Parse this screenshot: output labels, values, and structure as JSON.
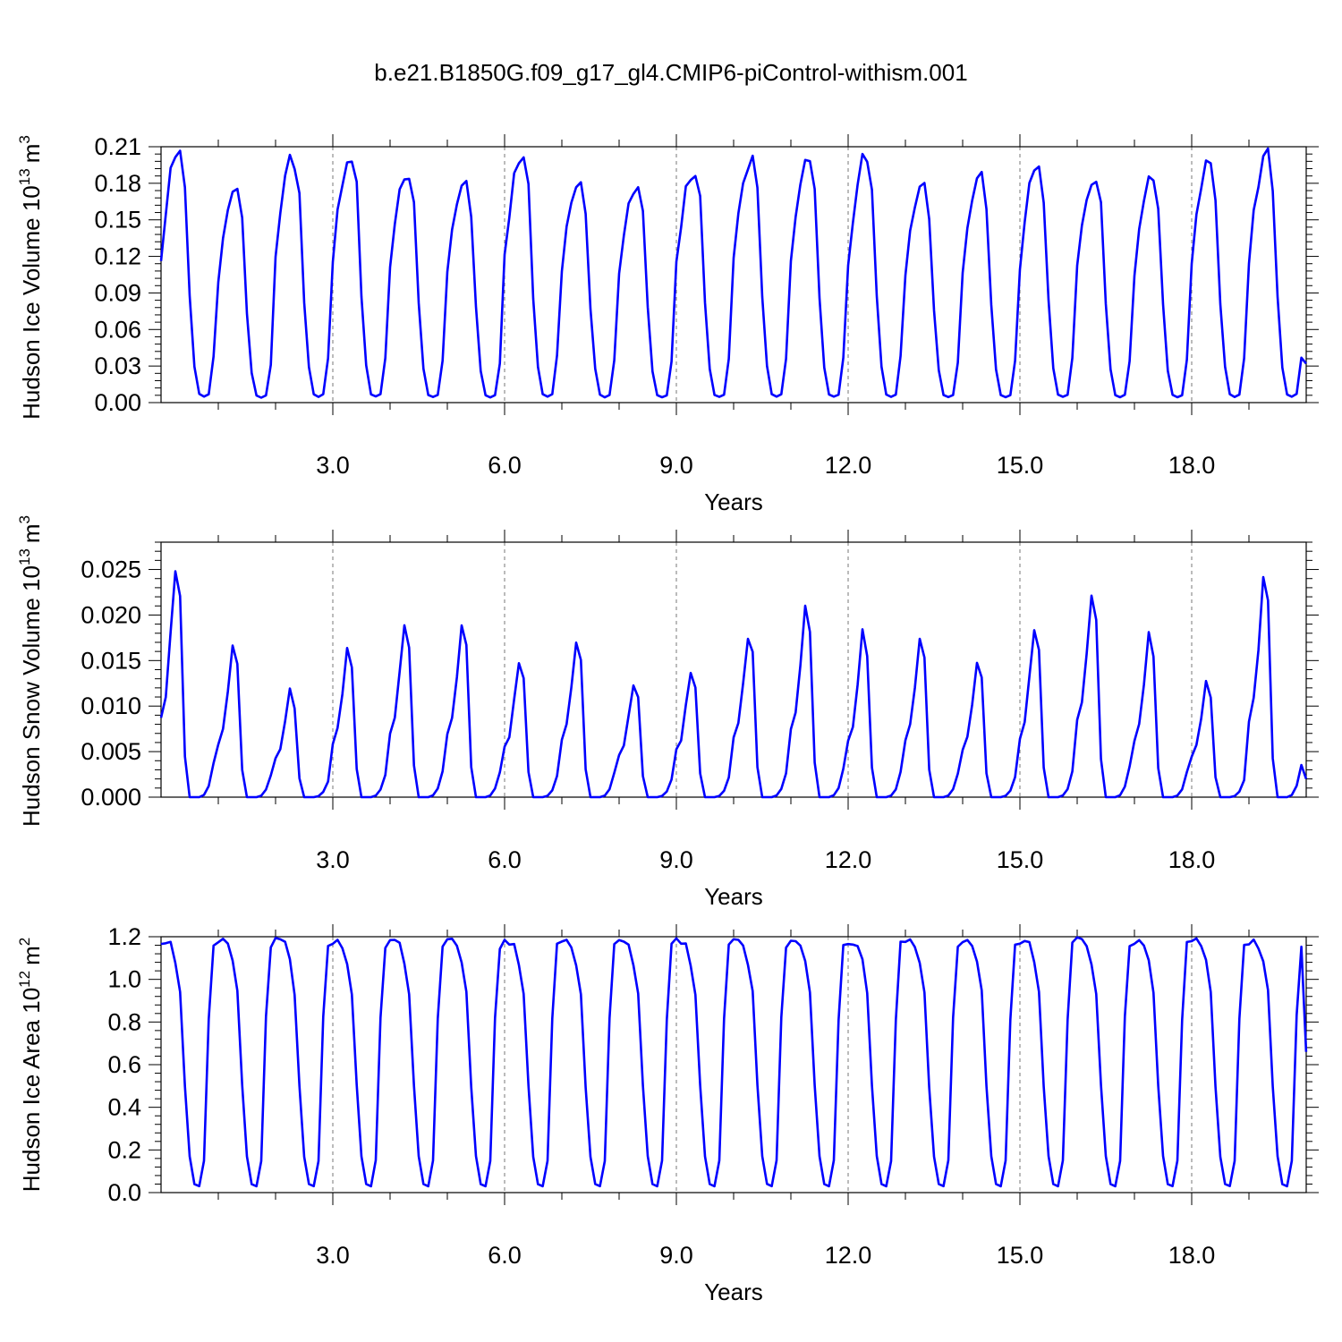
{
  "figure": {
    "title": "b.e21.B1850G.f09_g17_gl4.CMIP6-piControl-withism.001"
  },
  "colors": {
    "series": "#0000ff",
    "axis": "#000000",
    "gridline": "#777777"
  },
  "chart_data": [
    {
      "type": "line",
      "title": "",
      "xlabel": "Years",
      "ylabel": "Hudson Ice Volume 10",
      "ylabel_exponent": "13",
      "ylabel_unit": "m",
      "ylabel_unit_exponent": "3",
      "xlim": [
        0,
        20
      ],
      "ylim": [
        0,
        0.21
      ],
      "x_ticks": [
        3,
        6,
        9,
        12,
        15,
        18
      ],
      "x_tick_labels": [
        "3.0",
        "6.0",
        "9.0",
        "12.0",
        "15.0",
        "18.0"
      ],
      "y_ticks": [
        0,
        0.03,
        0.06,
        0.09,
        0.12,
        0.15,
        0.18,
        0.21
      ],
      "y_tick_labels": [
        "0.00",
        "0.03",
        "0.06",
        "0.09",
        "0.12",
        "0.15",
        "0.18",
        "0.21"
      ],
      "vertical_gridlines": [
        3,
        6,
        9,
        12,
        15,
        18
      ],
      "grid": "dashed vertical at labelled years",
      "legend": "none",
      "x_step": 0.08333,
      "annual_cycle": [
        0.12,
        0.158,
        0.186,
        0.203,
        0.206,
        0.178,
        0.088,
        0.03,
        0.007,
        0.005,
        0.007,
        0.038
      ],
      "annual_maxima": [
        0.206,
        0.172,
        0.199,
        0.204,
        0.189,
        0.181,
        0.206,
        0.186,
        0.18,
        0.193,
        0.2,
        0.199,
        0.2,
        0.181,
        0.185,
        0.193,
        0.186,
        0.184,
        0.196,
        0.203
      ],
      "end_value": 0.032
    },
    {
      "type": "line",
      "title": "",
      "xlabel": "Years",
      "ylabel": "Hudson Snow Volume 10",
      "ylabel_exponent": "13",
      "ylabel_unit": "m",
      "ylabel_unit_exponent": "3",
      "xlim": [
        0,
        20
      ],
      "ylim": [
        0,
        0.028
      ],
      "x_ticks": [
        3,
        6,
        9,
        12,
        15,
        18
      ],
      "x_tick_labels": [
        "3.0",
        "6.0",
        "9.0",
        "12.0",
        "15.0",
        "18.0"
      ],
      "y_ticks": [
        0,
        0.005,
        0.01,
        0.015,
        0.02,
        0.025
      ],
      "y_tick_labels": [
        "0.000",
        "0.005",
        "0.010",
        "0.015",
        "0.020",
        "0.025"
      ],
      "vertical_gridlines": [
        3,
        6,
        9,
        12,
        15,
        18
      ],
      "grid": "dashed vertical at labelled years",
      "legend": "none",
      "x_step": 0.08333,
      "annual_cycle": [
        0.36,
        0.45,
        0.7,
        1.0,
        0.88,
        0.18,
        0.0,
        0.0,
        0.0,
        0.01,
        0.05,
        0.15
      ],
      "annual_maxima": [
        0.025,
        0.0163,
        0.0115,
        0.0167,
        0.0192,
        0.0189,
        0.0152,
        0.0176,
        0.0127,
        0.0142,
        0.0179,
        0.0207,
        0.0178,
        0.0175,
        0.0146,
        0.0183,
        0.0227,
        0.0177,
        0.0124,
        0.0239
      ],
      "end_value": 0.002
    },
    {
      "type": "line",
      "title": "",
      "xlabel": "Years",
      "ylabel": "Hudson Ice Area 10",
      "ylabel_exponent": "12",
      "ylabel_unit": "m",
      "ylabel_unit_exponent": "2",
      "xlim": [
        0,
        20
      ],
      "ylim": [
        0,
        1.2
      ],
      "x_ticks": [
        3,
        6,
        9,
        12,
        15,
        18
      ],
      "x_tick_labels": [
        "3.0",
        "6.0",
        "9.0",
        "12.0",
        "15.0",
        "18.0"
      ],
      "y_ticks": [
        0,
        0.2,
        0.4,
        0.6,
        0.8,
        1.0,
        1.2
      ],
      "y_tick_labels": [
        "0.0",
        "0.2",
        "0.4",
        "0.6",
        "0.8",
        "1.0",
        "1.2"
      ],
      "vertical_gridlines": [
        3,
        6,
        9,
        12,
        15,
        18
      ],
      "grid": "dashed vertical at labelled years",
      "legend": "none",
      "x_step": 0.08333,
      "annual_cycle": [
        1.18,
        1.18,
        1.16,
        1.08,
        0.94,
        0.5,
        0.17,
        0.04,
        0.03,
        0.15,
        0.82,
        1.16
      ],
      "annual_maxima": [
        1.18,
        1.18,
        1.18,
        1.18,
        1.18,
        1.18,
        1.18,
        1.18,
        1.18,
        1.18,
        1.18,
        1.18,
        1.18,
        1.18,
        1.18,
        1.18,
        1.18,
        1.18,
        1.18,
        1.18
      ],
      "end_value": 0.66
    }
  ]
}
